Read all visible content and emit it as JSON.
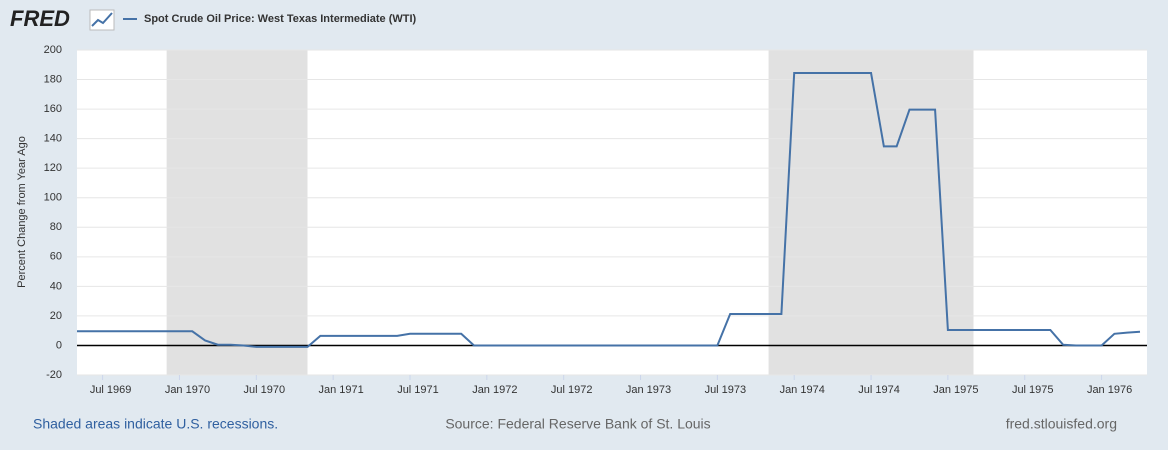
{
  "brand": "FRED",
  "chart_data": {
    "type": "line",
    "y_label": "Percent Change from Year Ago",
    "note": "Shaded areas indicate U.S. recessions.",
    "source": "Source: Federal Reserve Bank of St. Louis",
    "site": "fred.stlouisfed.org",
    "x": [
      "1969-05",
      "1969-06",
      "1969-07",
      "1969-08",
      "1969-09",
      "1969-10",
      "1969-11",
      "1969-12",
      "1970-01",
      "1970-02",
      "1970-03",
      "1970-04",
      "1970-05",
      "1970-06",
      "1970-07",
      "1970-08",
      "1970-09",
      "1970-10",
      "1970-11",
      "1970-12",
      "1971-01",
      "1971-02",
      "1971-03",
      "1971-04",
      "1971-05",
      "1971-06",
      "1971-07",
      "1971-08",
      "1971-09",
      "1971-10",
      "1971-11",
      "1971-12",
      "1972-01",
      "1972-02",
      "1972-03",
      "1972-04",
      "1972-05",
      "1972-06",
      "1972-07",
      "1972-08",
      "1972-09",
      "1972-10",
      "1972-11",
      "1972-12",
      "1973-01",
      "1973-02",
      "1973-03",
      "1973-04",
      "1973-05",
      "1973-06",
      "1973-07",
      "1973-08",
      "1973-09",
      "1973-10",
      "1973-11",
      "1973-12",
      "1974-01",
      "1974-02",
      "1974-03",
      "1974-04",
      "1974-05",
      "1974-06",
      "1974-07",
      "1974-08",
      "1974-09",
      "1974-10",
      "1974-11",
      "1974-12",
      "1975-01",
      "1975-02",
      "1975-03",
      "1975-04",
      "1975-05",
      "1975-06",
      "1975-07",
      "1975-08",
      "1975-09",
      "1975-10",
      "1975-11",
      "1975-12",
      "1976-01",
      "1976-02",
      "1976-03",
      "1976-04"
    ],
    "series": [
      {
        "name": "Spot Crude Oil Price: West Texas Intermediate (WTI)",
        "color": "#4572a7",
        "values": [
          9.6,
          9.6,
          9.6,
          9.6,
          9.6,
          9.6,
          9.6,
          9.6,
          9.6,
          9.6,
          3.4,
          0.5,
          0.5,
          0,
          -1,
          -1,
          -1,
          -1,
          -1,
          6.5,
          6.5,
          6.5,
          6.5,
          6.5,
          6.5,
          6.5,
          7.9,
          7.9,
          7.9,
          7.9,
          7.9,
          0,
          0,
          0,
          0,
          0,
          0,
          0,
          0,
          0,
          0,
          0,
          0,
          0,
          0,
          0,
          0,
          0,
          0,
          0,
          0,
          21.3,
          21.3,
          21.3,
          21.3,
          21.3,
          184.4,
          184.4,
          184.4,
          184.4,
          184.4,
          184.4,
          184.4,
          134.8,
          134.8,
          159.6,
          159.6,
          159.6,
          10.5,
          10.5,
          10.5,
          10.5,
          10.5,
          10.5,
          10.5,
          10.5,
          10.5,
          0.5,
          0,
          0,
          0,
          7.9,
          8.7,
          9.3
        ]
      }
    ],
    "recessions": [
      {
        "start": "1969-12",
        "end": "1970-11"
      },
      {
        "start": "1973-11",
        "end": "1975-03"
      }
    ],
    "recession_color": "#e1e1e1",
    "xlim": [
      "1969-05",
      "1976-04"
    ],
    "xticks": [
      {
        "value": "1969-07",
        "label": "Jul 1969"
      },
      {
        "value": "1970-01",
        "label": "Jan 1970"
      },
      {
        "value": "1970-07",
        "label": "Jul 1970"
      },
      {
        "value": "1971-01",
        "label": "Jan 1971"
      },
      {
        "value": "1971-07",
        "label": "Jul 1971"
      },
      {
        "value": "1972-01",
        "label": "Jan 1972"
      },
      {
        "value": "1972-07",
        "label": "Jul 1972"
      },
      {
        "value": "1973-01",
        "label": "Jan 1973"
      },
      {
        "value": "1973-07",
        "label": "Jul 1973"
      },
      {
        "value": "1974-01",
        "label": "Jan 1974"
      },
      {
        "value": "1974-07",
        "label": "Jul 1974"
      },
      {
        "value": "1975-01",
        "label": "Jan 1975"
      },
      {
        "value": "1975-07",
        "label": "Jul 1975"
      },
      {
        "value": "1976-01",
        "label": "Jan 1976"
      }
    ],
    "ylim": [
      -20,
      200
    ],
    "yticks": [
      -20,
      0,
      20,
      40,
      60,
      80,
      100,
      120,
      140,
      160,
      180,
      200
    ],
    "grid": true
  }
}
